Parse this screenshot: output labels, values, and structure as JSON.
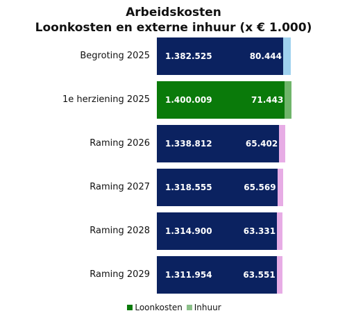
{
  "chart_data": {
    "type": "bar",
    "orientation": "horizontal",
    "stacked": true,
    "title": "Arbeidskosten",
    "subtitle": "Loonkosten en externe inhuur (x € 1.000)",
    "categories": [
      "Begroting 2025",
      "1e herziening 2025",
      "Raming 2026",
      "Raming 2027",
      "Raming 2028",
      "Raming 2029"
    ],
    "series": [
      {
        "name": "Loonkosten",
        "values": [
          1382525,
          1400009,
          1338812,
          1318555,
          1314900,
          1311954
        ],
        "labels": [
          "1.382.525",
          "1.400.009",
          "1.338.812",
          "1.318.555",
          "1.314.900",
          "1.311.954"
        ]
      },
      {
        "name": "Inhuur",
        "values": [
          80444,
          71443,
          65402,
          65569,
          63331,
          63551
        ],
        "labels": [
          "80.444",
          "71.443",
          "65.402",
          "65.569",
          "63.331",
          "63.551"
        ]
      }
    ],
    "colors": {
      "loonkosten": [
        "#0b2260",
        "#0a7a0a",
        "#0b2260",
        "#0b2260",
        "#0b2260",
        "#0b2260"
      ],
      "inhuur": [
        "#9fd1ee",
        "#6fb56a",
        "#e7ace5",
        "#e7ace5",
        "#e7ace5",
        "#e7ace5"
      ]
    },
    "legend": {
      "position": "bottom",
      "items": [
        {
          "label": "Loonkosten",
          "color": "#0a7a0a"
        },
        {
          "label": "Inhuur",
          "color": "#8cc08a"
        }
      ]
    },
    "xlim": [
      0,
      1500000
    ],
    "grid": false
  }
}
